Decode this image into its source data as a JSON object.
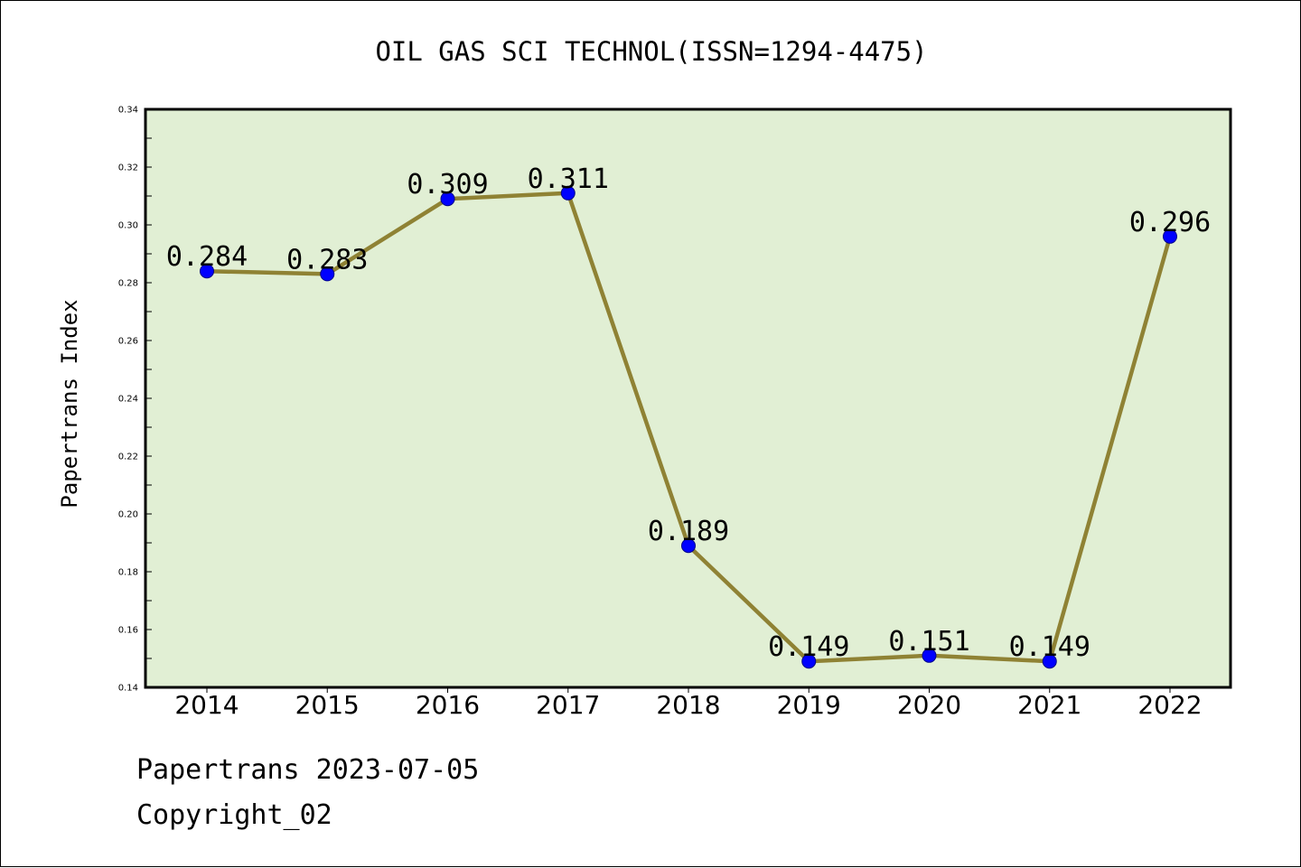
{
  "chart_data": {
    "type": "line",
    "title": "OIL GAS SCI TECHNOL(ISSN=1294-4475)",
    "xlabel": "",
    "ylabel": "Papertrans Index",
    "categories": [
      "2014",
      "2015",
      "2016",
      "2017",
      "2018",
      "2019",
      "2020",
      "2021",
      "2022"
    ],
    "series": [
      {
        "values": [
          0.284,
          0.283,
          0.309,
          0.311,
          0.189,
          0.149,
          0.151,
          0.149,
          0.296
        ],
        "labels": [
          "0.284",
          "0.283",
          "0.309",
          "0.311",
          "0.189",
          "0.149",
          "0.151",
          "0.149",
          "0.296"
        ]
      }
    ],
    "ylim": [
      0.14,
      0.34
    ],
    "yticks": [
      "0.14",
      "0.16",
      "0.18",
      "0.20",
      "0.22",
      "0.24",
      "0.26",
      "0.28",
      "0.30",
      "0.32",
      "0.34"
    ],
    "grid": false,
    "colors": {
      "plot_background": "#e1efd4",
      "line": "#8f8234",
      "marker": "#0000ff"
    }
  },
  "footer": {
    "date_line": "Papertrans 2023-07-05",
    "copyright_line": "Copyright_02"
  }
}
